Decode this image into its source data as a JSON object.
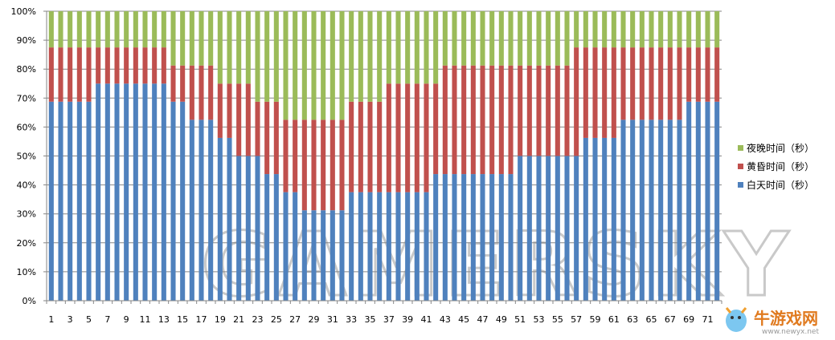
{
  "watermark": "GAMERSKY",
  "site_logo": {
    "text": "牛游戏网",
    "url": "www.newyx.net"
  },
  "colors": {
    "day": "#4f81bd",
    "dusk": "#c0504d",
    "night": "#9bbb59",
    "grid": "#868686",
    "axis": "#868686"
  },
  "chart_data": {
    "type": "bar",
    "stacked": "percent",
    "title": "",
    "xlabel": "",
    "ylabel": "",
    "ylim": [
      0,
      100
    ],
    "y_ticks": [
      "0%",
      "10%",
      "20%",
      "30%",
      "40%",
      "50%",
      "60%",
      "70%",
      "80%",
      "90%",
      "100%"
    ],
    "x": [
      1,
      2,
      3,
      4,
      5,
      6,
      7,
      8,
      9,
      10,
      11,
      12,
      13,
      14,
      15,
      16,
      17,
      18,
      19,
      20,
      21,
      22,
      23,
      24,
      25,
      26,
      27,
      28,
      29,
      30,
      31,
      32,
      33,
      34,
      35,
      36,
      37,
      38,
      39,
      40,
      41,
      42,
      43,
      44,
      45,
      46,
      47,
      48,
      49,
      50,
      51,
      52,
      53,
      54,
      55,
      56,
      57,
      58,
      59,
      60,
      61,
      62,
      63,
      64,
      65,
      66,
      67,
      68,
      69,
      70,
      71,
      72
    ],
    "x_tick_labels": [
      "1",
      "3",
      "5",
      "7",
      "9",
      "11",
      "13",
      "15",
      "17",
      "19",
      "21",
      "23",
      "25",
      "27",
      "29",
      "31",
      "33",
      "35",
      "37",
      "39",
      "41",
      "43",
      "45",
      "47",
      "49",
      "51",
      "53",
      "55",
      "57",
      "59",
      "61",
      "63",
      "65",
      "67",
      "69",
      "71"
    ],
    "grid": true,
    "legend_position": "right",
    "series": [
      {
        "name": "白天时间（秒）",
        "color": "#4f81bd",
        "values": [
          68.75,
          68.75,
          68.75,
          68.75,
          68.75,
          75,
          75,
          75,
          75,
          75,
          75,
          75,
          75,
          68.75,
          68.75,
          62.5,
          62.5,
          62.5,
          56.25,
          56.25,
          50,
          50,
          50,
          43.75,
          43.75,
          37.5,
          37.5,
          31.25,
          31.25,
          31.25,
          31.25,
          31.25,
          37.5,
          37.5,
          37.5,
          37.5,
          37.5,
          37.5,
          37.5,
          37.5,
          37.5,
          43.75,
          43.75,
          43.75,
          43.75,
          43.75,
          43.75,
          43.75,
          43.75,
          43.75,
          50,
          50,
          50,
          50,
          50,
          50,
          50,
          56.25,
          56.25,
          56.25,
          56.25,
          62.5,
          62.5,
          62.5,
          62.5,
          62.5,
          62.5,
          62.5,
          68.75,
          68.75,
          68.75,
          68.75
        ]
      },
      {
        "name": "黄昏时间（秒）",
        "color": "#c0504d",
        "values": [
          18.75,
          18.75,
          18.75,
          18.75,
          18.75,
          12.5,
          12.5,
          12.5,
          12.5,
          12.5,
          12.5,
          12.5,
          12.5,
          12.5,
          12.5,
          18.75,
          18.75,
          18.75,
          18.75,
          18.75,
          25,
          25,
          18.75,
          25,
          25,
          25,
          25,
          31.25,
          31.25,
          31.25,
          31.25,
          31.25,
          31.25,
          31.25,
          31.25,
          31.25,
          37.5,
          37.5,
          37.5,
          37.5,
          37.5,
          31.25,
          37.5,
          37.5,
          37.5,
          37.5,
          37.5,
          37.5,
          37.5,
          37.5,
          31.25,
          31.25,
          31.25,
          31.25,
          31.25,
          31.25,
          37.5,
          31.25,
          31.25,
          31.25,
          31.25,
          25,
          25,
          25,
          25,
          25,
          25,
          25,
          18.75,
          18.75,
          18.75,
          18.75
        ]
      },
      {
        "name": "夜晚时间（秒）",
        "color": "#9bbb59",
        "values": [
          12.5,
          12.5,
          12.5,
          12.5,
          12.5,
          12.5,
          12.5,
          12.5,
          12.5,
          12.5,
          12.5,
          12.5,
          12.5,
          18.75,
          18.75,
          18.75,
          18.75,
          18.75,
          25,
          25,
          25,
          25,
          31.25,
          31.25,
          31.25,
          37.5,
          37.5,
          37.5,
          37.5,
          37.5,
          37.5,
          37.5,
          31.25,
          31.25,
          31.25,
          31.25,
          25,
          25,
          25,
          25,
          25,
          25,
          18.75,
          18.75,
          18.75,
          18.75,
          18.75,
          18.75,
          18.75,
          18.75,
          18.75,
          18.75,
          18.75,
          18.75,
          18.75,
          18.75,
          12.5,
          12.5,
          12.5,
          12.5,
          12.5,
          12.5,
          12.5,
          12.5,
          12.5,
          12.5,
          12.5,
          12.5,
          12.5,
          12.5,
          12.5,
          12.5
        ]
      }
    ],
    "legend_order": [
      2,
      1,
      0
    ]
  }
}
